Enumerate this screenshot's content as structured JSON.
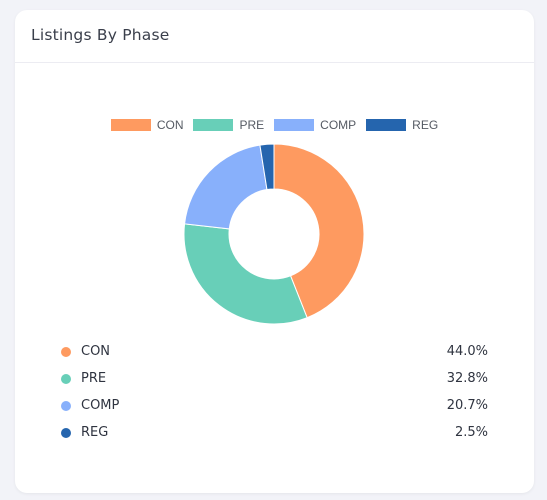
{
  "card": {
    "title": "Listings By Phase"
  },
  "chart_data": {
    "type": "pie",
    "style": "donut",
    "legend": "top",
    "categories": [
      "CON",
      "PRE",
      "COMP",
      "REG"
    ],
    "values": [
      44.0,
      32.8,
      20.7,
      2.5
    ],
    "percent_labels": [
      "44.0%",
      "32.8%",
      "20.7%",
      "2.5%"
    ],
    "colors": [
      "#fe9a60",
      "#68cfb8",
      "#88b0fb",
      "#2565ae"
    ]
  }
}
